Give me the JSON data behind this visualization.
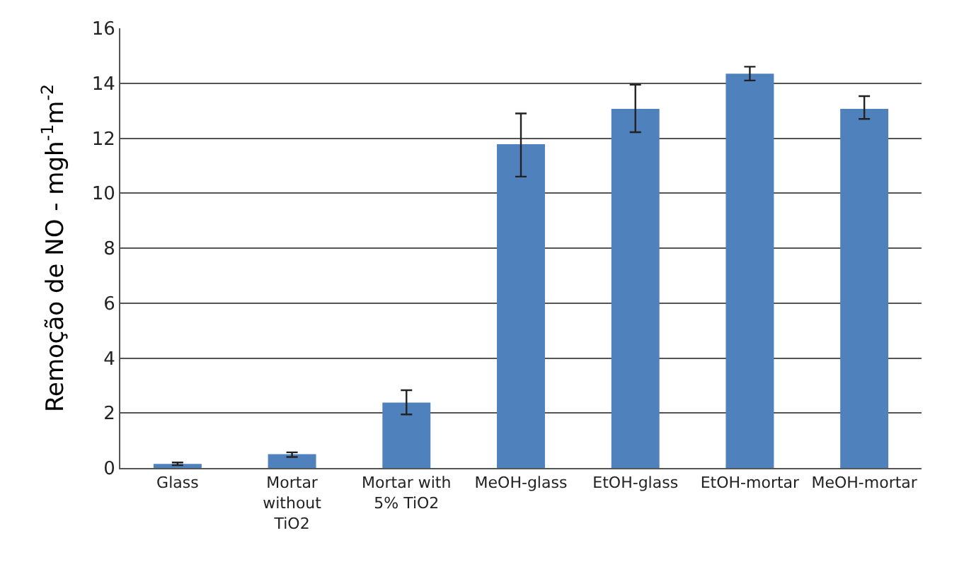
{
  "chart_data": {
    "type": "bar",
    "ylabel": "Remoção de NO - mgh$^{-1}$m$^{-2}$",
    "categories": [
      "Glass",
      "Mortar without TiO2",
      "Mortar with 5% TiO2",
      "MeOH-glass",
      "EtOH-glass",
      "EtOH-mortar",
      "MeOH-mortar"
    ],
    "values": [
      0.15,
      0.5,
      2.38,
      11.78,
      13.07,
      14.35,
      13.07
    ],
    "errors": [
      [
        0.1,
        0.2
      ],
      [
        0.4,
        0.57
      ],
      [
        1.95,
        2.83
      ],
      [
        10.6,
        12.9
      ],
      [
        12.22,
        13.95
      ],
      [
        14.1,
        14.6
      ],
      [
        12.7,
        13.53
      ]
    ],
    "color": "#4f81bd",
    "ylim": [
      0,
      16
    ],
    "yticks": [
      0,
      2,
      4,
      6,
      8,
      10,
      12,
      14,
      16
    ],
    "grid": "y"
  }
}
